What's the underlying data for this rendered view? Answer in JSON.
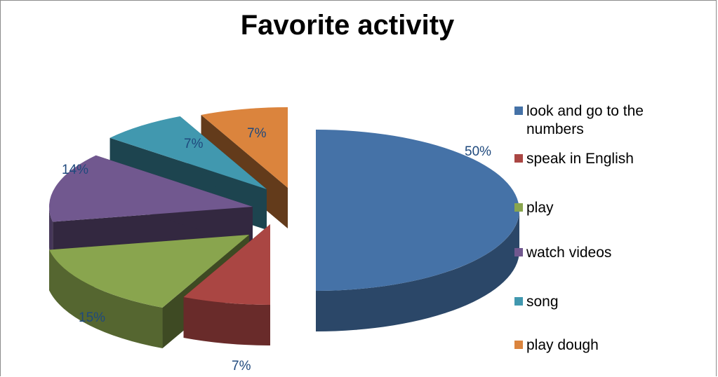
{
  "chart_data": {
    "type": "pie",
    "title": "Favorite activity",
    "categories": [
      "look and go to the numbers",
      "speak in English",
      "play",
      "watch videos",
      "song",
      "play dough"
    ],
    "values": [
      50,
      7,
      15,
      14,
      7,
      7
    ],
    "labels": [
      "50%",
      "7%",
      "15%",
      "14%",
      "7%",
      "7%"
    ],
    "colors": [
      "#4572a7",
      "#aa4643",
      "#89a54e",
      "#71588f",
      "#4198af",
      "#db843d"
    ],
    "legend_position": "right",
    "exploded": true,
    "three_d": true
  }
}
